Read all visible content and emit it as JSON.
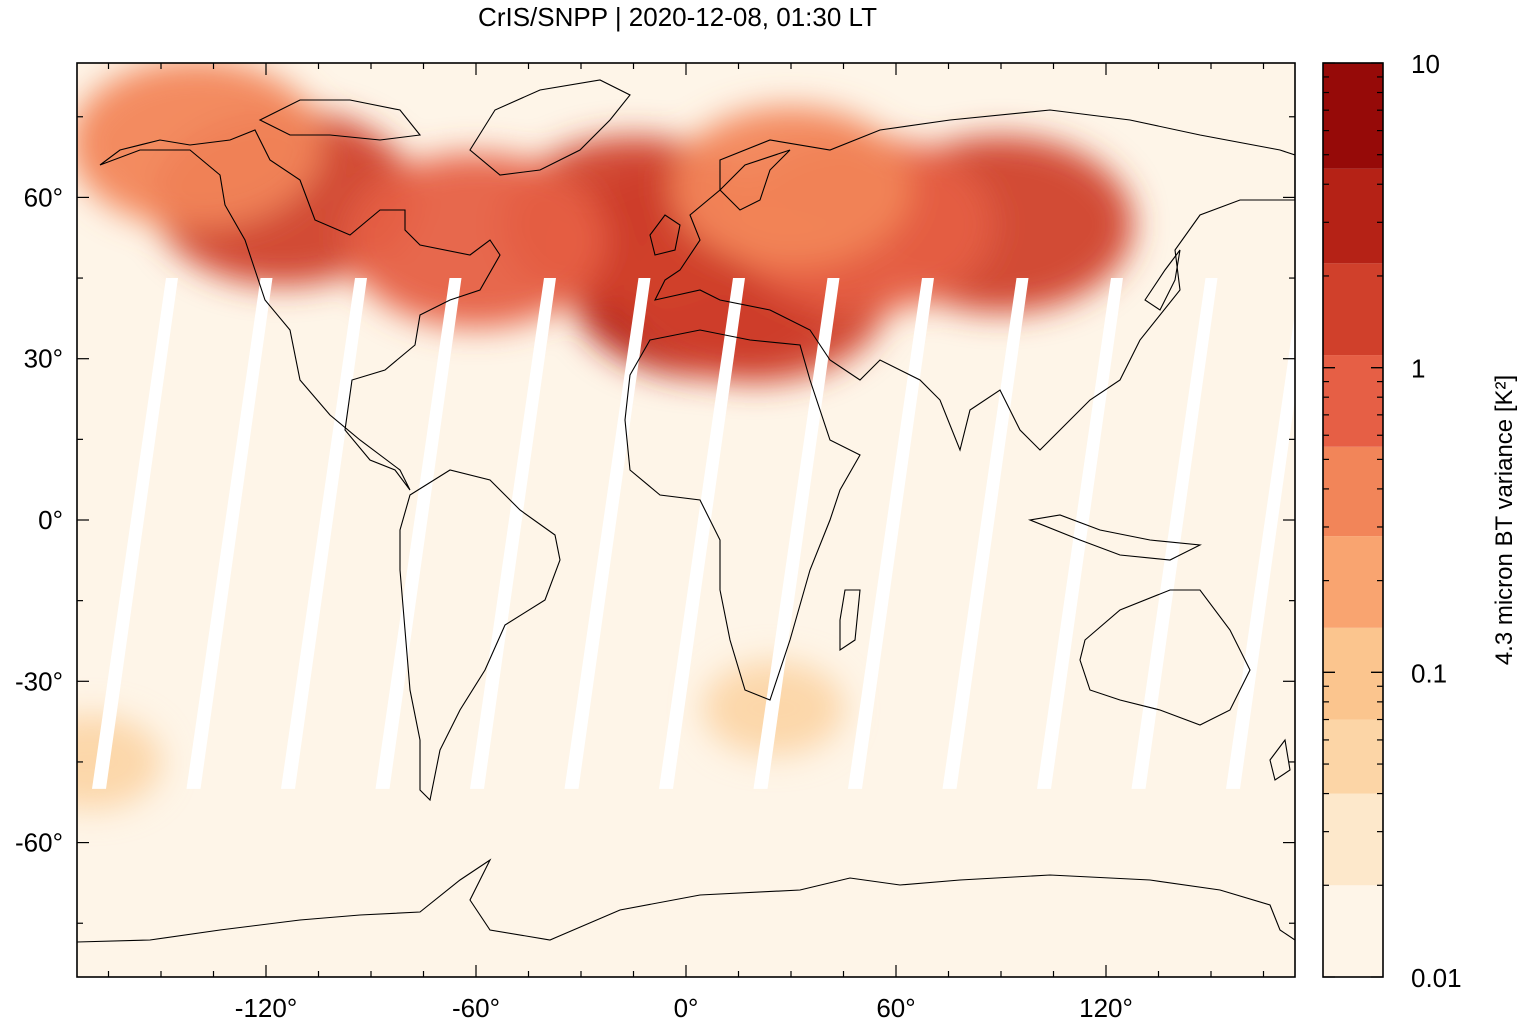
{
  "title": "CrIS/SNPP | 2020-12-08, 01:30 LT",
  "map": {
    "x_ticks": [
      {
        "value": -120,
        "label": "-120°"
      },
      {
        "value": -60,
        "label": "-60°"
      },
      {
        "value": 0,
        "label": "0°"
      },
      {
        "value": 60,
        "label": "60°"
      },
      {
        "value": 120,
        "label": "120°"
      }
    ],
    "y_ticks": [
      {
        "value": 60,
        "label": "60°"
      },
      {
        "value": 30,
        "label": "30°"
      },
      {
        "value": 0,
        "label": "0°"
      },
      {
        "value": -30,
        "label": "-30°"
      },
      {
        "value": -60,
        "label": "-60°"
      }
    ],
    "xlim": [
      -174,
      174
    ],
    "ylim": [
      -85,
      85
    ],
    "grid": false,
    "projection": "plate carrée"
  },
  "colorbar": {
    "label": "4.3 micron BT variance [K²]",
    "scale": "log",
    "range": [
      0.01,
      10
    ],
    "tick_labels": [
      {
        "value": 10,
        "label": "10"
      },
      {
        "value": 1,
        "label": "1"
      },
      {
        "value": 0.1,
        "label": "0.1"
      },
      {
        "value": 0.01,
        "label": "0.01"
      }
    ],
    "bins": [
      {
        "from": 0.01,
        "to": 0.02,
        "color": "#fef5e8"
      },
      {
        "from": 0.02,
        "to": 0.04,
        "color": "#fde8cb"
      },
      {
        "from": 0.04,
        "to": 0.07,
        "color": "#fcd5a6"
      },
      {
        "from": 0.07,
        "to": 0.14,
        "color": "#fbc58e"
      },
      {
        "from": 0.14,
        "to": 0.28,
        "color": "#f9a470"
      },
      {
        "from": 0.28,
        "to": 0.55,
        "color": "#f28559"
      },
      {
        "from": 0.55,
        "to": 1.1,
        "color": "#e65f45"
      },
      {
        "from": 1.1,
        "to": 2.2,
        "color": "#d0402b"
      },
      {
        "from": 2.2,
        "to": 4.5,
        "color": "#b52216"
      },
      {
        "from": 4.5,
        "to": 10,
        "color": "#960a08"
      }
    ]
  },
  "chart_data": {
    "type": "heatmap",
    "title": "CrIS/SNPP | 2020-12-08, 01:30 LT",
    "value_label": "4.3 micron BT variance [K²]",
    "background_value": 0.012,
    "hotspots": [
      {
        "lon": 0,
        "lat": 50,
        "value": 3.0
      },
      {
        "lon": 5,
        "lat": 43,
        "value": 2.5
      },
      {
        "lon": 20,
        "lat": 42,
        "value": 1.5
      },
      {
        "lon": -15,
        "lat": 55,
        "value": 1.5
      },
      {
        "lon": -115,
        "lat": 60,
        "value": 1.2
      },
      {
        "lon": 90,
        "lat": 55,
        "value": 1.3
      },
      {
        "lon": 50,
        "lat": 55,
        "value": 1.0
      },
      {
        "lon": -60,
        "lat": 52,
        "value": 0.6
      },
      {
        "lon": -140,
        "lat": 70,
        "value": 0.5
      },
      {
        "lon": 30,
        "lat": 62,
        "value": 0.4
      },
      {
        "lon": -170,
        "lat": -45,
        "value": 0.06
      },
      {
        "lon": 25,
        "lat": -35,
        "value": 0.06
      }
    ],
    "data_gaps": "orbit swath gaps between ~45°N and ~50°S"
  }
}
